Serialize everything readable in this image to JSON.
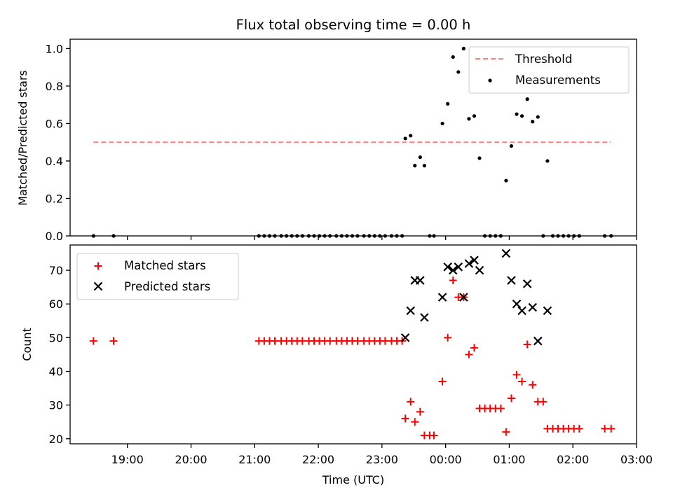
{
  "chart_data": [
    {
      "type": "scatter",
      "title": "Flux total observing time = 0.00 h",
      "ylabel": "Matched/Predicted stars",
      "xlabel": "",
      "xlim": [
        "18:06",
        "03:00"
      ],
      "ylim": [
        0,
        1.05
      ],
      "yticks": [
        "0.0",
        "0.2",
        "0.4",
        "0.6",
        "0.8",
        "1.0"
      ],
      "grid": false,
      "legend": {
        "placement": "top-right",
        "entries": [
          "Threshold",
          "Measurements"
        ]
      },
      "threshold": {
        "name": "Threshold",
        "value": 0.5,
        "x_start": "18:28",
        "x_end": "02:36",
        "color": "#ff7f7f",
        "style": "dashed"
      },
      "series": [
        {
          "name": "Measurements",
          "marker": "dot",
          "color": "#000000",
          "points": [
            [
              "18:28",
              0
            ],
            [
              "18:47",
              0
            ],
            [
              "21:04",
              0
            ],
            [
              "21:09",
              0
            ],
            [
              "21:14",
              0
            ],
            [
              "21:19",
              0
            ],
            [
              "21:25",
              0
            ],
            [
              "21:30",
              0
            ],
            [
              "21:35",
              0
            ],
            [
              "21:40",
              0
            ],
            [
              "21:45",
              0
            ],
            [
              "21:51",
              0
            ],
            [
              "21:56",
              0
            ],
            [
              "22:01",
              0
            ],
            [
              "22:06",
              0
            ],
            [
              "22:11",
              0
            ],
            [
              "22:17",
              0
            ],
            [
              "22:22",
              0
            ],
            [
              "22:27",
              0
            ],
            [
              "22:32",
              0
            ],
            [
              "22:37",
              0
            ],
            [
              "22:43",
              0
            ],
            [
              "22:48",
              0
            ],
            [
              "22:53",
              0
            ],
            [
              "22:58",
              0
            ],
            [
              "23:03",
              0
            ],
            [
              "23:09",
              0
            ],
            [
              "23:14",
              0
            ],
            [
              "23:19",
              0
            ],
            [
              "23:22",
              0.52
            ],
            [
              "23:27",
              0.535
            ],
            [
              "23:31",
              0.375
            ],
            [
              "23:36",
              0.42
            ],
            [
              "23:40",
              0.375
            ],
            [
              "23:45",
              0
            ],
            [
              "23:49",
              0
            ],
            [
              "23:57",
              0.6
            ],
            [
              "00:02",
              0.705
            ],
            [
              "00:07",
              0.955
            ],
            [
              "00:12",
              0.875
            ],
            [
              "00:17",
              1.0
            ],
            [
              "00:22",
              0.625
            ],
            [
              "00:27",
              0.64
            ],
            [
              "00:32",
              0.415
            ],
            [
              "00:37",
              0
            ],
            [
              "00:42",
              0
            ],
            [
              "00:47",
              0
            ],
            [
              "00:52",
              0
            ],
            [
              "00:57",
              0.295
            ],
            [
              "01:02",
              0.48
            ],
            [
              "01:07",
              0.65
            ],
            [
              "01:12",
              0.64
            ],
            [
              "01:17",
              0.73
            ],
            [
              "01:22",
              0.61
            ],
            [
              "01:27",
              0.635
            ],
            [
              "01:32",
              0
            ],
            [
              "01:36",
              0.4
            ],
            [
              "01:41",
              0
            ],
            [
              "01:46",
              0
            ],
            [
              "01:51",
              0
            ],
            [
              "01:56",
              0
            ],
            [
              "02:01",
              0
            ],
            [
              "02:06",
              0
            ],
            [
              "02:30",
              0
            ],
            [
              "02:36",
              0
            ]
          ]
        }
      ]
    },
    {
      "type": "scatter",
      "title": "",
      "ylabel": "Count",
      "xlabel": "Time (UTC)",
      "xlim": [
        "18:06",
        "03:00"
      ],
      "ylim": [
        18.5,
        77.5
      ],
      "yticks": [
        "20",
        "30",
        "40",
        "50",
        "60",
        "70"
      ],
      "xticks": [
        "19:00",
        "20:00",
        "21:00",
        "22:00",
        "23:00",
        "00:00",
        "01:00",
        "02:00",
        "03:00"
      ],
      "grid": false,
      "legend": {
        "placement": "top-left",
        "entries": [
          "Matched stars",
          "Predicted stars"
        ]
      },
      "series": [
        {
          "name": "Matched stars",
          "marker": "plus",
          "color": "#ff0000",
          "points": [
            [
              "18:28",
              49
            ],
            [
              "18:47",
              49
            ],
            [
              "21:04",
              49
            ],
            [
              "21:09",
              49
            ],
            [
              "21:14",
              49
            ],
            [
              "21:19",
              49
            ],
            [
              "21:25",
              49
            ],
            [
              "21:30",
              49
            ],
            [
              "21:35",
              49
            ],
            [
              "21:40",
              49
            ],
            [
              "21:45",
              49
            ],
            [
              "21:51",
              49
            ],
            [
              "21:56",
              49
            ],
            [
              "22:01",
              49
            ],
            [
              "22:06",
              49
            ],
            [
              "22:11",
              49
            ],
            [
              "22:17",
              49
            ],
            [
              "22:22",
              49
            ],
            [
              "22:27",
              49
            ],
            [
              "22:32",
              49
            ],
            [
              "22:37",
              49
            ],
            [
              "22:43",
              49
            ],
            [
              "22:48",
              49
            ],
            [
              "22:53",
              49
            ],
            [
              "22:58",
              49
            ],
            [
              "23:03",
              49
            ],
            [
              "23:09",
              49
            ],
            [
              "23:14",
              49
            ],
            [
              "23:19",
              49
            ],
            [
              "23:22",
              26
            ],
            [
              "23:27",
              31
            ],
            [
              "23:31",
              25
            ],
            [
              "23:36",
              28
            ],
            [
              "23:40",
              21
            ],
            [
              "23:45",
              21
            ],
            [
              "23:49",
              21
            ],
            [
              "23:57",
              37
            ],
            [
              "00:02",
              50
            ],
            [
              "00:07",
              67
            ],
            [
              "00:12",
              62
            ],
            [
              "00:17",
              62
            ],
            [
              "00:22",
              45
            ],
            [
              "00:27",
              47
            ],
            [
              "00:32",
              29
            ],
            [
              "00:37",
              29
            ],
            [
              "00:42",
              29
            ],
            [
              "00:47",
              29
            ],
            [
              "00:52",
              29
            ],
            [
              "00:57",
              22
            ],
            [
              "01:02",
              32
            ],
            [
              "01:07",
              39
            ],
            [
              "01:12",
              37
            ],
            [
              "01:17",
              48
            ],
            [
              "01:22",
              36
            ],
            [
              "01:27",
              31
            ],
            [
              "01:32",
              31
            ],
            [
              "01:36",
              23
            ],
            [
              "01:41",
              23
            ],
            [
              "01:46",
              23
            ],
            [
              "01:51",
              23
            ],
            [
              "01:56",
              23
            ],
            [
              "02:01",
              23
            ],
            [
              "02:06",
              23
            ],
            [
              "02:30",
              23
            ],
            [
              "02:36",
              23
            ]
          ]
        },
        {
          "name": "Predicted stars",
          "marker": "x",
          "color": "#000000",
          "points": [
            [
              "23:22",
              50
            ],
            [
              "23:27",
              58
            ],
            [
              "23:31",
              67
            ],
            [
              "23:36",
              67
            ],
            [
              "23:40",
              56
            ],
            [
              "23:57",
              62
            ],
            [
              "00:02",
              71
            ],
            [
              "00:07",
              70
            ],
            [
              "00:12",
              71
            ],
            [
              "00:17",
              62
            ],
            [
              "00:22",
              72
            ],
            [
              "00:27",
              73
            ],
            [
              "00:32",
              70
            ],
            [
              "00:57",
              75
            ],
            [
              "01:02",
              67
            ],
            [
              "01:07",
              60
            ],
            [
              "01:12",
              58
            ],
            [
              "01:17",
              66
            ],
            [
              "01:22",
              59
            ],
            [
              "01:27",
              49
            ],
            [
              "01:36",
              58
            ]
          ]
        }
      ]
    }
  ]
}
